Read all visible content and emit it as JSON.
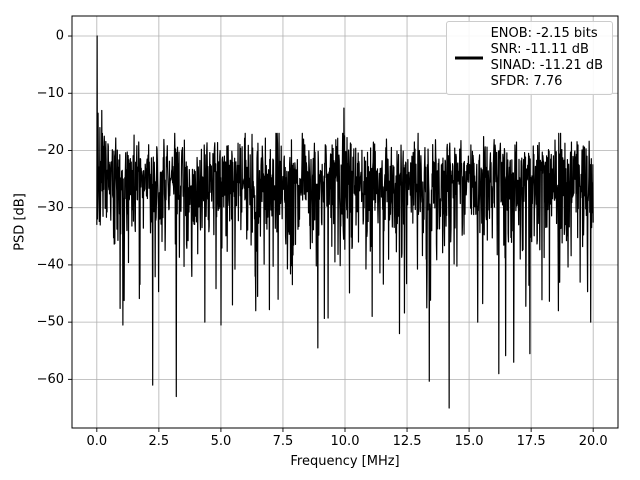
{
  "figure": {
    "background": "#ffffff"
  },
  "chart_data": {
    "type": "line",
    "title": "",
    "xlabel": "Frequency [MHz]",
    "ylabel": "PSD [dB]",
    "xlim": [
      -1.0,
      21.0
    ],
    "ylim": [
      -68.5,
      3.5
    ],
    "x_ticks": [
      0.0,
      2.5,
      5.0,
      7.5,
      10.0,
      12.5,
      15.0,
      17.5,
      20.0
    ],
    "x_tick_labels": [
      "0.0",
      "2.5",
      "5.0",
      "7.5",
      "10.0",
      "12.5",
      "15.0",
      "17.5",
      "20.0"
    ],
    "y_ticks": [
      0,
      -10,
      -20,
      -30,
      -40,
      -50,
      -60
    ],
    "y_tick_labels": [
      "0",
      "−10",
      "−20",
      "−30",
      "−40",
      "−50",
      "−60"
    ],
    "grid": true,
    "grid_color": "#b0b0b0",
    "axes_edge_color": "#000000",
    "line_color": "#000000",
    "legend": {
      "position": "upper right",
      "lines": [
        "ENOB: -2.15 bits",
        "SNR: -11.11 dB",
        "SINAD: -11.21 dB",
        "SFDR: 7.76"
      ]
    },
    "stats": {
      "enob_bits": -2.15,
      "snr_db": -11.11,
      "sinad_db": -11.21,
      "sfdr": 7.76
    },
    "series": [
      {
        "name": "PSD",
        "x_range": [
          0,
          20
        ],
        "n_points": 1600,
        "noise_model": {
          "type": "exponential_power_db",
          "base_db": -24.0,
          "seed": 42,
          "max_db": -17.0,
          "min_db": -66.0
        },
        "features": [
          {
            "x": 0.0,
            "y": -33.0
          },
          {
            "x": 0.0125,
            "y": 0.0
          },
          {
            "x": 0.05,
            "y": -13.5
          },
          {
            "x": 0.125,
            "y": -16.0
          },
          {
            "x": 0.2,
            "y": -13.0
          },
          {
            "x": 0.3,
            "y": -17.5
          },
          {
            "x": 1.05,
            "y": -50.5
          },
          {
            "x": 2.25,
            "y": -61.0
          },
          {
            "x": 3.2,
            "y": -63.0
          },
          {
            "x": 4.35,
            "y": -50.0
          },
          {
            "x": 5.0,
            "y": -50.5
          },
          {
            "x": 6.4,
            "y": -48.0
          },
          {
            "x": 7.3,
            "y": -46.0
          },
          {
            "x": 8.9,
            "y": -54.5
          },
          {
            "x": 9.95,
            "y": -12.6
          },
          {
            "x": 11.1,
            "y": -49.0
          },
          {
            "x": 12.2,
            "y": -52.0
          },
          {
            "x": 13.3,
            "y": -47.5
          },
          {
            "x": 14.2,
            "y": -65.0
          },
          {
            "x": 15.35,
            "y": -50.0
          },
          {
            "x": 16.2,
            "y": -59.0
          },
          {
            "x": 16.8,
            "y": -57.0
          },
          {
            "x": 17.45,
            "y": -55.5
          },
          {
            "x": 18.6,
            "y": -48.0
          },
          {
            "x": 19.9,
            "y": -50.0
          }
        ],
        "summary": "White-noise-like PSD: dense band between about -20 dB and -40 dB (mean near -28 dB), 0 dB fundamental peak at DC, spur at about -12.6 dB near 10 MHz, deepest nulls near -61 dB (2.25 MHz), -63 dB (3.2 MHz) and -65 dB (14.2 MHz)."
      }
    ]
  }
}
